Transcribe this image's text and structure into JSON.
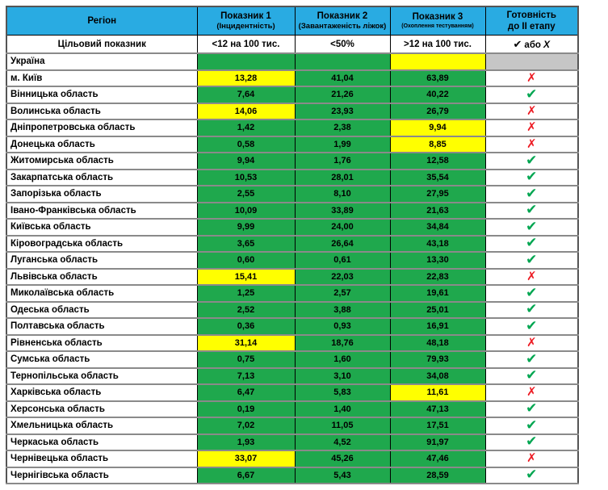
{
  "colors": {
    "header_blue": "#29ABE2",
    "cell_green": "#1FA84D",
    "cell_yellow": "#FFFF00",
    "cell_gray": "#C6C6C6",
    "check_green": "#00A651",
    "cross_red": "#ED1C24"
  },
  "symbols": {
    "check": "✔",
    "cross": "✗"
  },
  "table": {
    "header": {
      "region": "Регіон",
      "ind1_title": "Показник 1",
      "ind1_sub": "(Інцидентність)",
      "ind2_title": "Показник 2",
      "ind2_sub": "(Завантаженість ліжок)",
      "ind3_title": "Показник 3",
      "ind3_sub": "(Охоплення тестуванням)",
      "readiness_line1": "Готовність",
      "readiness_line2": "до ІІ етапу"
    },
    "target": {
      "label": "Цільовий показник",
      "v1": "<12 на 100 тис.",
      "v2": "<50%",
      "v3": ">12 на 100 тис.",
      "check_symbol": "✔",
      "or_text": "або",
      "cross_symbol": "Х"
    },
    "rows": [
      {
        "region": "Україна",
        "v1": "",
        "c1": "green",
        "v2": "",
        "c2": "green",
        "v3": "",
        "c3": "yellow",
        "status": "none"
      },
      {
        "region": "м. Київ",
        "v1": "13,28",
        "c1": "yellow",
        "v2": "41,04",
        "c2": "green",
        "v3": "63,89",
        "c3": "green",
        "status": "cross"
      },
      {
        "region": "Вінницька область",
        "v1": "7,64",
        "c1": "green",
        "v2": "21,26",
        "c2": "green",
        "v3": "40,22",
        "c3": "green",
        "status": "check"
      },
      {
        "region": "Волинська область",
        "v1": "14,06",
        "c1": "yellow",
        "v2": "23,93",
        "c2": "green",
        "v3": "26,79",
        "c3": "green",
        "status": "cross"
      },
      {
        "region": "Дніпропетровська область",
        "v1": "1,42",
        "c1": "green",
        "v2": "2,38",
        "c2": "green",
        "v3": "9,94",
        "c3": "yellow",
        "status": "cross"
      },
      {
        "region": "Донецька область",
        "v1": "0,58",
        "c1": "green",
        "v2": "1,99",
        "c2": "green",
        "v3": "8,85",
        "c3": "yellow",
        "status": "cross"
      },
      {
        "region": "Житомирська область",
        "v1": "9,94",
        "c1": "green",
        "v2": "1,76",
        "c2": "green",
        "v3": "12,58",
        "c3": "green",
        "status": "check"
      },
      {
        "region": "Закарпатська область",
        "v1": "10,53",
        "c1": "green",
        "v2": "28,01",
        "c2": "green",
        "v3": "35,54",
        "c3": "green",
        "status": "check"
      },
      {
        "region": "Запорізька область",
        "v1": "2,55",
        "c1": "green",
        "v2": "8,10",
        "c2": "green",
        "v3": "27,95",
        "c3": "green",
        "status": "check"
      },
      {
        "region": "Івано-Франківська область",
        "v1": "10,09",
        "c1": "green",
        "v2": "33,89",
        "c2": "green",
        "v3": "21,63",
        "c3": "green",
        "status": "check"
      },
      {
        "region": "Київська область",
        "v1": "9,99",
        "c1": "green",
        "v2": "24,00",
        "c2": "green",
        "v3": "34,84",
        "c3": "green",
        "status": "check"
      },
      {
        "region": "Кіровоградська область",
        "v1": "3,65",
        "c1": "green",
        "v2": "26,64",
        "c2": "green",
        "v3": "43,18",
        "c3": "green",
        "status": "check"
      },
      {
        "region": "Луганська область",
        "v1": "0,60",
        "c1": "green",
        "v2": "0,61",
        "c2": "green",
        "v3": "13,30",
        "c3": "green",
        "status": "check"
      },
      {
        "region": "Львівська область",
        "v1": "15,41",
        "c1": "yellow",
        "v2": "22,03",
        "c2": "green",
        "v3": "22,83",
        "c3": "green",
        "status": "cross"
      },
      {
        "region": "Миколаївська область",
        "v1": "1,25",
        "c1": "green",
        "v2": "2,57",
        "c2": "green",
        "v3": "19,61",
        "c3": "green",
        "status": "check"
      },
      {
        "region": "Одеська область",
        "v1": "2,52",
        "c1": "green",
        "v2": "3,88",
        "c2": "green",
        "v3": "25,01",
        "c3": "green",
        "status": "check"
      },
      {
        "region": "Полтавська область",
        "v1": "0,36",
        "c1": "green",
        "v2": "0,93",
        "c2": "green",
        "v3": "16,91",
        "c3": "green",
        "status": "check"
      },
      {
        "region": "Рівненська область",
        "v1": "31,14",
        "c1": "yellow",
        "v2": "18,76",
        "c2": "green",
        "v3": "48,18",
        "c3": "green",
        "status": "cross"
      },
      {
        "region": "Сумська область",
        "v1": "0,75",
        "c1": "green",
        "v2": "1,60",
        "c2": "green",
        "v3": "79,93",
        "c3": "green",
        "status": "check"
      },
      {
        "region": "Тернопільська область",
        "v1": "7,13",
        "c1": "green",
        "v2": "3,10",
        "c2": "green",
        "v3": "34,08",
        "c3": "green",
        "status": "check"
      },
      {
        "region": "Харківська область",
        "v1": "6,47",
        "c1": "green",
        "v2": "5,83",
        "c2": "green",
        "v3": "11,61",
        "c3": "yellow",
        "status": "cross"
      },
      {
        "region": "Херсонська область",
        "v1": "0,19",
        "c1": "green",
        "v2": "1,40",
        "c2": "green",
        "v3": "47,13",
        "c3": "green",
        "status": "check"
      },
      {
        "region": "Хмельницька область",
        "v1": "7,02",
        "c1": "green",
        "v2": "11,05",
        "c2": "green",
        "v3": "17,51",
        "c3": "green",
        "status": "check"
      },
      {
        "region": "Черкаська область",
        "v1": "1,93",
        "c1": "green",
        "v2": "4,52",
        "c2": "green",
        "v3": "91,97",
        "c3": "green",
        "status": "check"
      },
      {
        "region": "Чернівецька область",
        "v1": "33,07",
        "c1": "yellow",
        "v2": "45,26",
        "c2": "green",
        "v3": "47,46",
        "c3": "green",
        "status": "cross"
      },
      {
        "region": "Чернігівська область",
        "v1": "6,67",
        "c1": "green",
        "v2": "5,43",
        "c2": "green",
        "v3": "28,59",
        "c3": "green",
        "status": "check"
      }
    ]
  }
}
